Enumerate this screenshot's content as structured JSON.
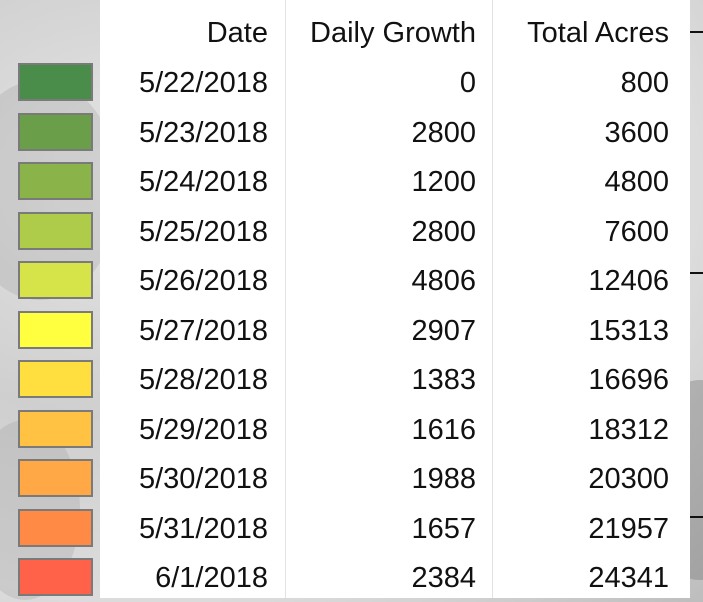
{
  "table": {
    "header": [
      "Date",
      "Daily Growth",
      "Total Acres"
    ],
    "rows": [
      {
        "color": "#4a8c4a",
        "cells": [
          "5/22/2018",
          0,
          800
        ]
      },
      {
        "color": "#6a9e48",
        "cells": [
          "5/23/2018",
          2800,
          3600
        ]
      },
      {
        "color": "#8ab34a",
        "cells": [
          "5/24/2018",
          1200,
          4800
        ]
      },
      {
        "color": "#afcb4a",
        "cells": [
          "5/25/2018",
          2800,
          7600
        ]
      },
      {
        "color": "#d6e44a",
        "cells": [
          "5/26/2018",
          4806,
          12406
        ]
      },
      {
        "color": "#ffff40",
        "cells": [
          "5/27/2018",
          2907,
          15313
        ]
      },
      {
        "color": "#ffdf40",
        "cells": [
          "5/28/2018",
          1383,
          16696
        ]
      },
      {
        "color": "#ffc242",
        "cells": [
          "5/29/2018",
          1616,
          18312
        ]
      },
      {
        "color": "#ffa845",
        "cells": [
          "5/30/2018",
          1988,
          20300
        ]
      },
      {
        "color": "#ff8a46",
        "cells": [
          "5/31/2018",
          1657,
          21957
        ]
      },
      {
        "color": "#ff6248",
        "cells": [
          "6/1/2018",
          2384,
          24341
        ]
      }
    ]
  }
}
